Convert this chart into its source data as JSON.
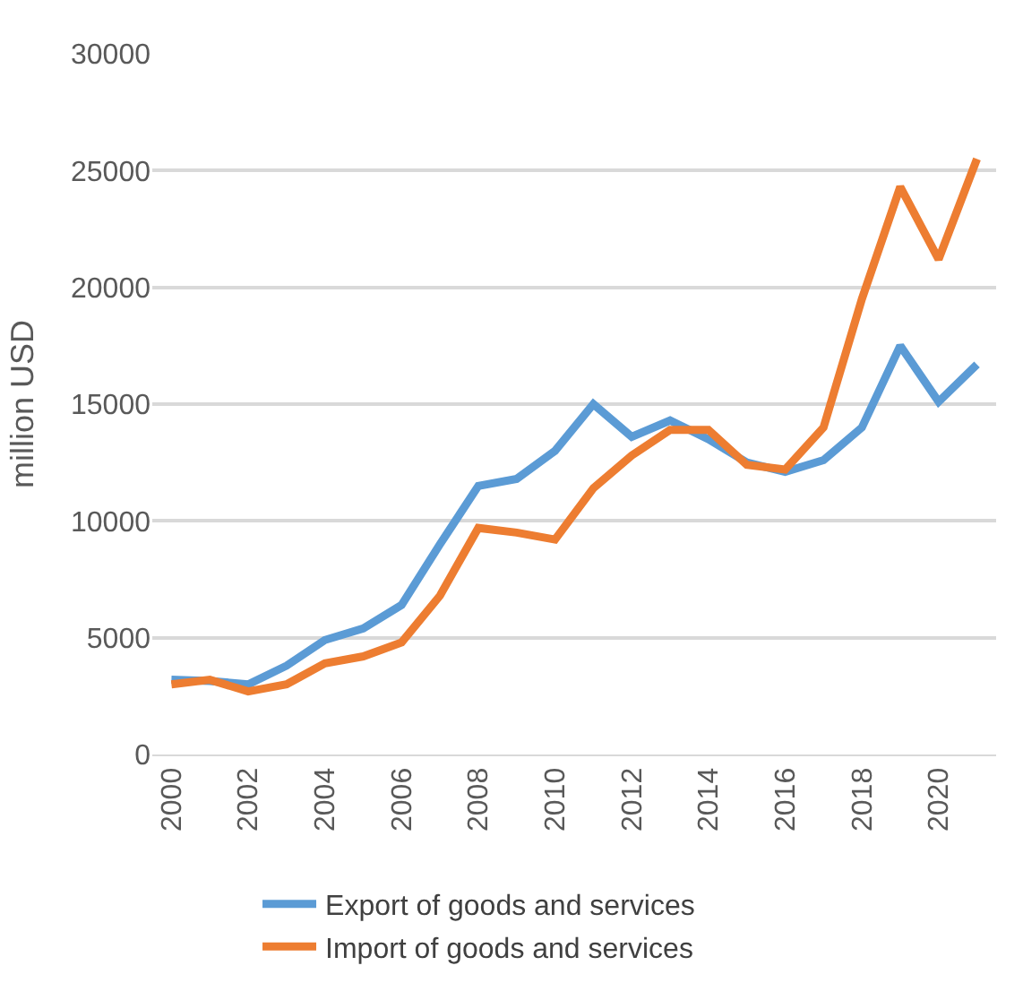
{
  "chart_data": {
    "type": "line",
    "ylabel": "million USD",
    "x": [
      2000,
      2001,
      2002,
      2003,
      2004,
      2005,
      2006,
      2007,
      2008,
      2009,
      2010,
      2011,
      2012,
      2013,
      2014,
      2015,
      2016,
      2017,
      2018,
      2019,
      2020,
      2021
    ],
    "series": [
      {
        "name": "Export of goods and services",
        "color": "#5b9bd5",
        "values": [
          3200,
          3150,
          3000,
          3800,
          4900,
          5400,
          6400,
          9000,
          11500,
          11800,
          13000,
          15000,
          13600,
          14300,
          13500,
          12500,
          12100,
          12600,
          14000,
          17500,
          15100,
          16700
        ]
      },
      {
        "name": "Import of goods and services",
        "color": "#ed7d31",
        "values": [
          3000,
          3200,
          2700,
          3000,
          3900,
          4200,
          4800,
          6800,
          9700,
          9500,
          9200,
          11400,
          12800,
          13900,
          13900,
          12400,
          12200,
          14000,
          19500,
          24300,
          21200,
          25500
        ]
      }
    ],
    "xlim": [
      1999.5,
      2021.5
    ],
    "xticks": [
      2000,
      2002,
      2004,
      2006,
      2008,
      2010,
      2012,
      2014,
      2016,
      2018,
      2020
    ],
    "ylim": [
      0,
      30000
    ],
    "yticks": [
      0,
      5000,
      10000,
      15000,
      20000,
      25000,
      30000
    ],
    "grid": "y",
    "legend": "bottom",
    "marker": "none",
    "line_style": "solid"
  }
}
